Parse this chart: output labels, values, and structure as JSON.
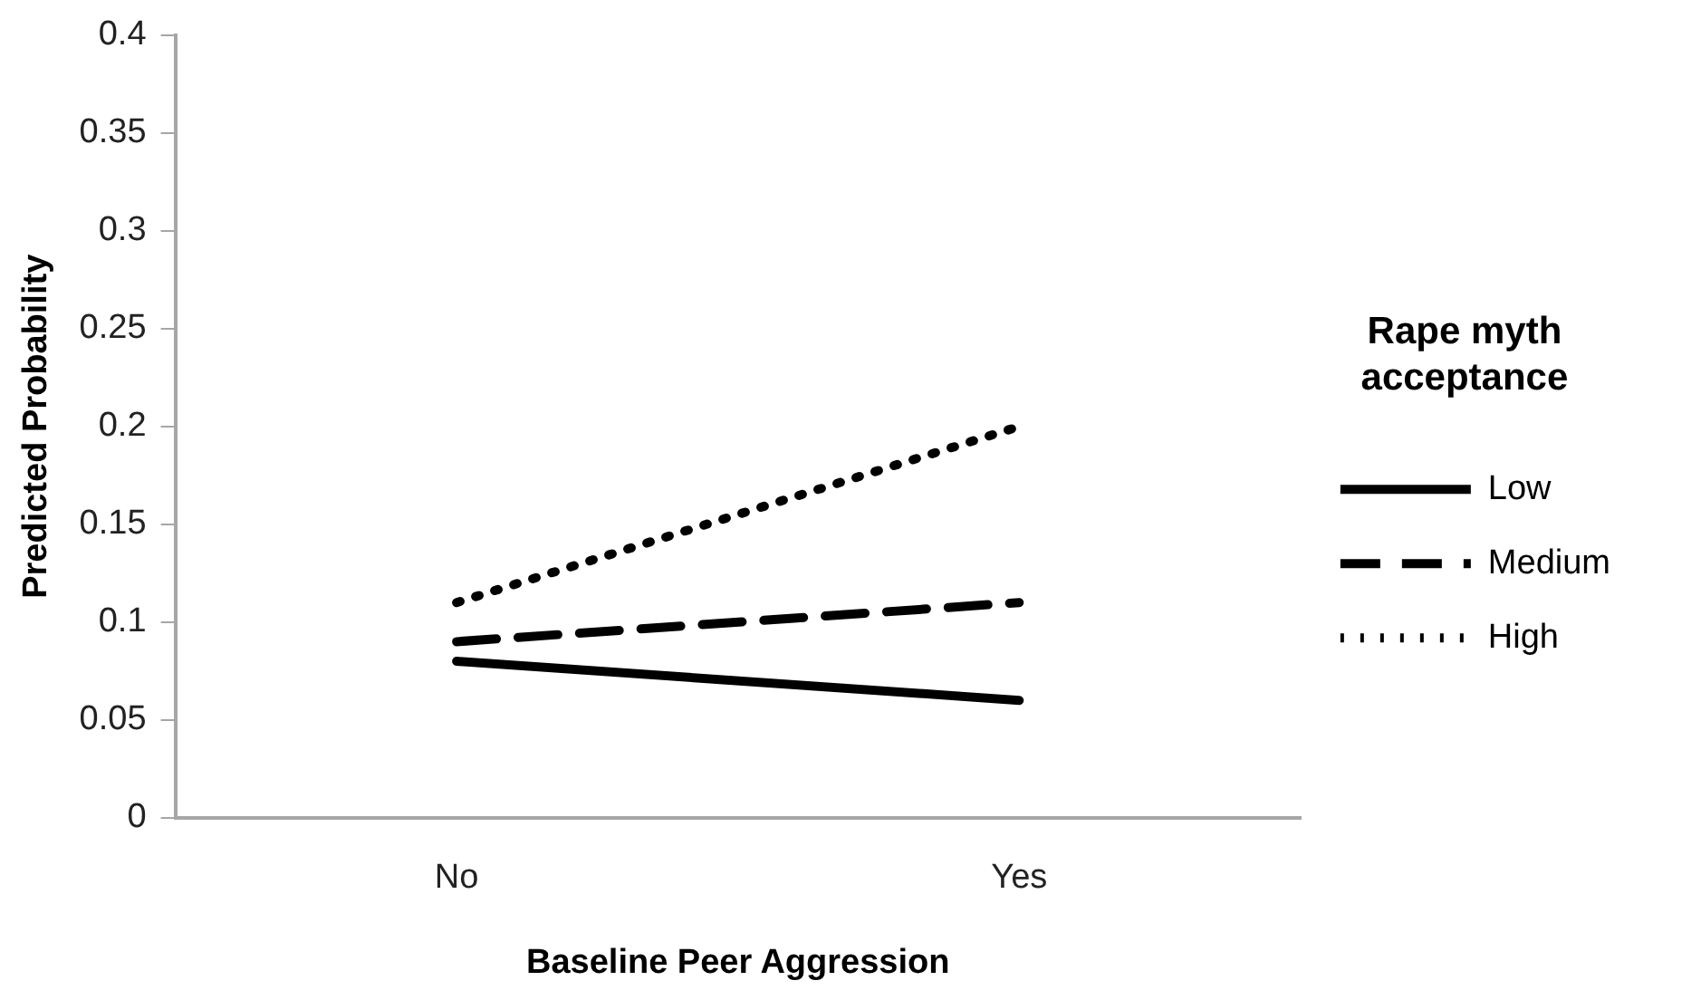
{
  "chart_data": {
    "type": "line",
    "xlabel": "Baseline Peer Aggression",
    "ylabel": "Predicted Probability",
    "legend_title": "Rape myth acceptance",
    "categories": [
      "No",
      "Yes"
    ],
    "series": [
      {
        "name": "Low",
        "color": "#000000",
        "line_style": "solid",
        "values": [
          0.08,
          0.06
        ]
      },
      {
        "name": "Medium",
        "color": "#000000",
        "line_style": "dashed",
        "values": [
          0.09,
          0.11
        ]
      },
      {
        "name": "High",
        "color": "#000000",
        "line_style": "dotted",
        "values": [
          0.11,
          0.2
        ]
      }
    ],
    "ylim": [
      0,
      0.4
    ],
    "yticks": [
      0,
      0.05,
      0.1,
      0.15,
      0.2,
      0.25,
      0.3,
      0.35,
      0.4
    ],
    "grid": false,
    "legend": "right",
    "marker": "none"
  }
}
